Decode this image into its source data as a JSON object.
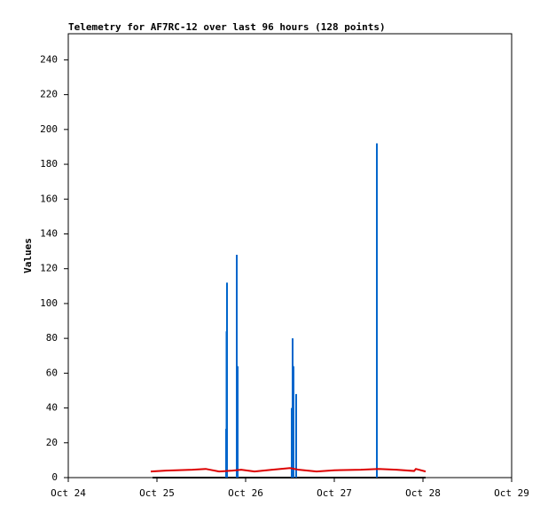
{
  "chart_data": {
    "type": "line",
    "title": "Telemetry for AF7RC-12 over last 96 hours (128 points)",
    "y_label": "Values",
    "xlim": [
      24,
      29
    ],
    "xticks": [
      {
        "value": 24,
        "label": "Oct 24"
      },
      {
        "value": 25,
        "label": "Oct 25"
      },
      {
        "value": 26,
        "label": "Oct 26"
      },
      {
        "value": 27,
        "label": "Oct 27"
      },
      {
        "value": 28,
        "label": "Oct 28"
      },
      {
        "value": 29,
        "label": "Oct 29"
      }
    ],
    "ylim": [
      0,
      255
    ],
    "yticks": [
      0,
      20,
      40,
      60,
      80,
      100,
      120,
      140,
      160,
      180,
      200,
      220,
      240
    ],
    "grid": false,
    "series": [
      {
        "style": "line",
        "color": "#000000",
        "x": [
          24.95,
          28.03
        ],
        "values": [
          0,
          0
        ]
      },
      {
        "style": "impulse",
        "color": "#0066cc",
        "x": [
          25.78,
          25.785,
          25.79,
          25.9,
          25.91,
          26.52,
          26.53,
          26.54,
          26.57,
          27.48
        ],
        "values": [
          28,
          84,
          112,
          128,
          64,
          40,
          80,
          64,
          48,
          192
        ]
      },
      {
        "style": "line",
        "color": "#dd0000",
        "x": [
          24.93,
          25.1,
          25.4,
          25.55,
          25.6,
          25.7,
          25.85,
          25.95,
          26.1,
          26.3,
          26.5,
          26.6,
          26.8,
          27.0,
          27.3,
          27.5,
          27.7,
          27.9,
          27.92,
          28.03
        ],
        "values": [
          3.5,
          4,
          4.5,
          5,
          4.5,
          3.5,
          4,
          4.5,
          3.5,
          4.5,
          5.5,
          4.5,
          3.5,
          4.2,
          4.5,
          5,
          4.5,
          3.8,
          5,
          3.5
        ]
      }
    ]
  }
}
